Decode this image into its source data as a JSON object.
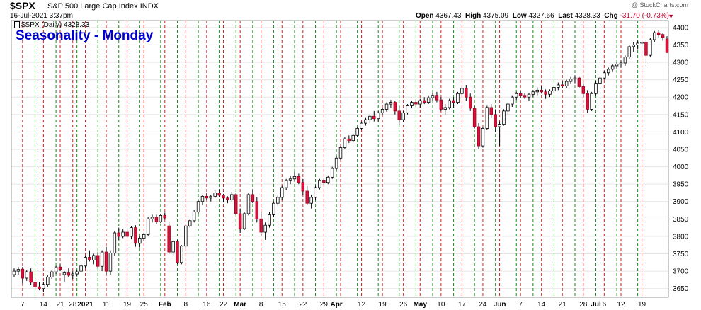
{
  "header": {
    "symbol": "$SPX",
    "name": "S&P 500 Large Cap Index",
    "exchange": "INDX",
    "datetime": "16-Jul-2021 3:37pm",
    "credit": "@ StockCharts.com",
    "open_label": "Open",
    "open": "4367.43",
    "high_label": "High",
    "high": "4375.09",
    "low_label": "Low",
    "low": "4327.66",
    "last_label": "Last",
    "last": "4328.33",
    "chg_label": "Chg",
    "chg": "-31.70 (-0.73%)",
    "legend": "$SPX (Daily) 4328.33"
  },
  "chart_data": {
    "type": "candlestick",
    "title": "Seasonality - Monday",
    "ylim": [
      3625,
      4420
    ],
    "yticks": [
      3650,
      3700,
      3750,
      3800,
      3850,
      3900,
      3950,
      4000,
      4050,
      4100,
      4150,
      4200,
      4250,
      4300,
      4350,
      4400
    ],
    "xticks": [
      {
        "label": "7",
        "i": 2
      },
      {
        "label": "14",
        "i": 7
      },
      {
        "label": "21",
        "i": 11
      },
      {
        "label": "28",
        "i": 14
      },
      {
        "label": "2021",
        "i": 17,
        "major": true
      },
      {
        "label": "11",
        "i": 22
      },
      {
        "label": "19",
        "i": 27
      },
      {
        "label": "25",
        "i": 31
      },
      {
        "label": "Feb",
        "i": 36,
        "major": true
      },
      {
        "label": "8",
        "i": 41
      },
      {
        "label": "16",
        "i": 46
      },
      {
        "label": "22",
        "i": 50
      },
      {
        "label": "Mar",
        "i": 54,
        "major": true
      },
      {
        "label": "8",
        "i": 59
      },
      {
        "label": "15",
        "i": 64
      },
      {
        "label": "22",
        "i": 69
      },
      {
        "label": "29",
        "i": 74
      },
      {
        "label": "Apr",
        "i": 77,
        "major": true
      },
      {
        "label": "12",
        "i": 83
      },
      {
        "label": "19",
        "i": 88
      },
      {
        "label": "26",
        "i": 93
      },
      {
        "label": "May",
        "i": 97,
        "major": true
      },
      {
        "label": "10",
        "i": 102
      },
      {
        "label": "17",
        "i": 107
      },
      {
        "label": "24",
        "i": 112
      },
      {
        "label": "Jun",
        "i": 116,
        "major": true
      },
      {
        "label": "7",
        "i": 121
      },
      {
        "label": "14",
        "i": 126
      },
      {
        "label": "21",
        "i": 131
      },
      {
        "label": "28",
        "i": 136
      },
      {
        "label": "Jul",
        "i": 139,
        "major": true
      },
      {
        "label": "6",
        "i": 141
      },
      {
        "label": "12",
        "i": 145
      },
      {
        "label": "19",
        "i": 150
      }
    ],
    "red_lines": [
      2,
      7,
      11,
      14,
      17,
      22,
      27,
      31,
      36,
      41,
      46,
      50,
      54,
      59,
      64,
      69,
      74,
      78,
      83,
      88,
      93,
      97,
      102,
      107,
      112,
      116,
      121,
      126,
      131,
      136,
      141,
      145,
      150
    ],
    "green_lines": [
      5,
      10,
      15,
      20,
      25,
      30,
      35,
      39,
      44,
      49,
      53,
      57,
      62,
      67,
      72,
      77,
      82,
      87,
      92,
      96,
      100,
      105,
      110,
      115,
      120,
      124,
      129,
      134,
      139,
      144,
      149
    ],
    "candles": [
      [
        0,
        3690,
        3708,
        3682,
        3700
      ],
      [
        1,
        3700,
        3712,
        3690,
        3705
      ],
      [
        2,
        3706,
        3712,
        3665,
        3680
      ],
      [
        3,
        3680,
        3702,
        3672,
        3698
      ],
      [
        4,
        3698,
        3708,
        3660,
        3668
      ],
      [
        5,
        3668,
        3680,
        3648,
        3655
      ],
      [
        6,
        3655,
        3668,
        3645,
        3650
      ],
      [
        7,
        3650,
        3668,
        3640,
        3662
      ],
      [
        8,
        3662,
        3688,
        3655,
        3683
      ],
      [
        9,
        3683,
        3702,
        3678,
        3698
      ],
      [
        10,
        3698,
        3715,
        3692,
        3712
      ],
      [
        11,
        3712,
        3720,
        3700,
        3705
      ],
      [
        12,
        3690,
        3700,
        3670,
        3695
      ],
      [
        13,
        3695,
        3708,
        3682,
        3688
      ],
      [
        14,
        3688,
        3700,
        3678,
        3692
      ],
      [
        15,
        3692,
        3702,
        3685,
        3698
      ],
      [
        16,
        3700,
        3720,
        3695,
        3715
      ],
      [
        17,
        3715,
        3745,
        3710,
        3740
      ],
      [
        18,
        3740,
        3760,
        3728,
        3732
      ],
      [
        19,
        3732,
        3750,
        3720,
        3745
      ],
      [
        20,
        3745,
        3756,
        3710,
        3714
      ],
      [
        21,
        3714,
        3760,
        3700,
        3755
      ],
      [
        22,
        3755,
        3770,
        3690,
        3700
      ],
      [
        23,
        3700,
        3760,
        3690,
        3752
      ],
      [
        24,
        3752,
        3815,
        3745,
        3810
      ],
      [
        25,
        3810,
        3825,
        3790,
        3800
      ],
      [
        26,
        3800,
        3820,
        3795,
        3812
      ],
      [
        27,
        3812,
        3822,
        3795,
        3800
      ],
      [
        28,
        3800,
        3830,
        3792,
        3825
      ],
      [
        29,
        3825,
        3832,
        3770,
        3780
      ],
      [
        30,
        3780,
        3800,
        3768,
        3795
      ],
      [
        31,
        3795,
        3810,
        3788,
        3805
      ],
      [
        32,
        3805,
        3855,
        3800,
        3850
      ],
      [
        33,
        3850,
        3862,
        3840,
        3855
      ],
      [
        34,
        3855,
        3862,
        3835,
        3842
      ],
      [
        35,
        3842,
        3865,
        3838,
        3860
      ],
      [
        36,
        3860,
        3868,
        3848,
        3853
      ],
      [
        37,
        3830,
        3840,
        3750,
        3755
      ],
      [
        38,
        3755,
        3790,
        3745,
        3785
      ],
      [
        39,
        3785,
        3790,
        3720,
        3725
      ],
      [
        40,
        3725,
        3775,
        3720,
        3772
      ],
      [
        41,
        3772,
        3832,
        3768,
        3830
      ],
      [
        42,
        3830,
        3850,
        3825,
        3845
      ],
      [
        43,
        3845,
        3875,
        3840,
        3870
      ],
      [
        44,
        3870,
        3905,
        3865,
        3900
      ],
      [
        45,
        3900,
        3920,
        3890,
        3915
      ],
      [
        46,
        3915,
        3925,
        3905,
        3910
      ],
      [
        47,
        3910,
        3920,
        3900,
        3915
      ],
      [
        48,
        3915,
        3932,
        3910,
        3925
      ],
      [
        49,
        3925,
        3935,
        3912,
        3918
      ],
      [
        50,
        3918,
        3922,
        3898,
        3910
      ],
      [
        51,
        3910,
        3915,
        3895,
        3905
      ],
      [
        52,
        3905,
        3928,
        3900,
        3920
      ],
      [
        53,
        3920,
        3925,
        3860,
        3865
      ],
      [
        54,
        3865,
        3880,
        3810,
        3822
      ],
      [
        55,
        3822,
        3870,
        3818,
        3865
      ],
      [
        56,
        3865,
        3925,
        3860,
        3920
      ],
      [
        57,
        3920,
        3935,
        3895,
        3900
      ],
      [
        58,
        3900,
        3912,
        3840,
        3850
      ],
      [
        59,
        3850,
        3870,
        3800,
        3812
      ],
      [
        60,
        3812,
        3840,
        3790,
        3832
      ],
      [
        61,
        3832,
        3870,
        3825,
        3862
      ],
      [
        62,
        3862,
        3900,
        3855,
        3895
      ],
      [
        63,
        3895,
        3920,
        3888,
        3912
      ],
      [
        64,
        3912,
        3945,
        3905,
        3940
      ],
      [
        65,
        3940,
        3965,
        3932,
        3960
      ],
      [
        66,
        3960,
        3975,
        3950,
        3965
      ],
      [
        67,
        3965,
        3985,
        3958,
        3972
      ],
      [
        68,
        3972,
        3980,
        3950,
        3955
      ],
      [
        69,
        3955,
        3965,
        3920,
        3930
      ],
      [
        70,
        3930,
        3945,
        3890,
        3895
      ],
      [
        71,
        3895,
        3920,
        3880,
        3912
      ],
      [
        72,
        3912,
        3945,
        3905,
        3940
      ],
      [
        73,
        3940,
        3965,
        3935,
        3960
      ],
      [
        74,
        3960,
        3968,
        3945,
        3955
      ],
      [
        75,
        3955,
        3975,
        3950,
        3970
      ],
      [
        76,
        3970,
        4000,
        3965,
        3995
      ],
      [
        77,
        3995,
        4030,
        3990,
        4025
      ],
      [
        78,
        4025,
        4060,
        4020,
        4055
      ],
      [
        79,
        4055,
        4085,
        4050,
        4080
      ],
      [
        80,
        4080,
        4090,
        4068,
        4075
      ],
      [
        81,
        4075,
        4095,
        4070,
        4090
      ],
      [
        82,
        4090,
        4115,
        4085,
        4110
      ],
      [
        83,
        4110,
        4130,
        4105,
        4125
      ],
      [
        84,
        4125,
        4140,
        4118,
        4135
      ],
      [
        85,
        4135,
        4150,
        4125,
        4145
      ],
      [
        86,
        4145,
        4160,
        4130,
        4138
      ],
      [
        87,
        4138,
        4160,
        4130,
        4155
      ],
      [
        88,
        4155,
        4170,
        4148,
        4165
      ],
      [
        89,
        4165,
        4185,
        4158,
        4180
      ],
      [
        90,
        4180,
        4192,
        4170,
        4185
      ],
      [
        91,
        4185,
        4190,
        4150,
        4160
      ],
      [
        92,
        4160,
        4175,
        4120,
        4135
      ],
      [
        93,
        4135,
        4160,
        4128,
        4155
      ],
      [
        94,
        4155,
        4180,
        4150,
        4175
      ],
      [
        95,
        4175,
        4190,
        4168,
        4185
      ],
      [
        96,
        4185,
        4195,
        4172,
        4180
      ],
      [
        97,
        4180,
        4195,
        4170,
        4190
      ],
      [
        98,
        4190,
        4200,
        4180,
        4185
      ],
      [
        99,
        4185,
        4205,
        4180,
        4198
      ],
      [
        100,
        4198,
        4212,
        4190,
        4205
      ],
      [
        101,
        4205,
        4215,
        4185,
        4192
      ],
      [
        102,
        4192,
        4200,
        4160,
        4165
      ],
      [
        103,
        4165,
        4180,
        4150,
        4170
      ],
      [
        104,
        4170,
        4195,
        4165,
        4190
      ],
      [
        105,
        4190,
        4200,
        4170,
        4185
      ],
      [
        106,
        4185,
        4215,
        4180,
        4210
      ],
      [
        107,
        4210,
        4230,
        4205,
        4225
      ],
      [
        108,
        4225,
        4235,
        4190,
        4200
      ],
      [
        109,
        4200,
        4210,
        4160,
        4168
      ],
      [
        110,
        4168,
        4175,
        4110,
        4115
      ],
      [
        111,
        4115,
        4125,
        4050,
        4060
      ],
      [
        112,
        4060,
        4115,
        4055,
        4110
      ],
      [
        113,
        4110,
        4175,
        4105,
        4170
      ],
      [
        114,
        4170,
        4180,
        4140,
        4150
      ],
      [
        115,
        4150,
        4165,
        4100,
        4115
      ],
      [
        116,
        4115,
        4130,
        4060,
        4122
      ],
      [
        117,
        4122,
        4165,
        4118,
        4160
      ],
      [
        118,
        4160,
        4185,
        4150,
        4180
      ],
      [
        119,
        4180,
        4205,
        4172,
        4200
      ],
      [
        120,
        4200,
        4215,
        4192,
        4210
      ],
      [
        121,
        4210,
        4218,
        4198,
        4205
      ],
      [
        122,
        4205,
        4212,
        4195,
        4200
      ],
      [
        123,
        4200,
        4212,
        4190,
        4208
      ],
      [
        124,
        4208,
        4220,
        4200,
        4215
      ],
      [
        125,
        4215,
        4228,
        4205,
        4220
      ],
      [
        126,
        4220,
        4232,
        4210,
        4215
      ],
      [
        127,
        4215,
        4222,
        4195,
        4208
      ],
      [
        128,
        4208,
        4222,
        4200,
        4218
      ],
      [
        129,
        4218,
        4232,
        4212,
        4228
      ],
      [
        130,
        4228,
        4242,
        4220,
        4235
      ],
      [
        131,
        4235,
        4245,
        4225,
        4232
      ],
      [
        132,
        4232,
        4250,
        4225,
        4245
      ],
      [
        133,
        4245,
        4258,
        4238,
        4252
      ],
      [
        134,
        4252,
        4262,
        4240,
        4255
      ],
      [
        135,
        4255,
        4258,
        4225,
        4230
      ],
      [
        136,
        4230,
        4240,
        4200,
        4210
      ],
      [
        137,
        4210,
        4220,
        4155,
        4165
      ],
      [
        138,
        4165,
        4215,
        4160,
        4210
      ],
      [
        139,
        4210,
        4245,
        4205,
        4240
      ],
      [
        140,
        4240,
        4262,
        4235,
        4255
      ],
      [
        141,
        4255,
        4275,
        4250,
        4270
      ],
      [
        142,
        4270,
        4285,
        4262,
        4280
      ],
      [
        143,
        4280,
        4295,
        4272,
        4290
      ],
      [
        144,
        4290,
        4300,
        4282,
        4295
      ],
      [
        145,
        4295,
        4305,
        4285,
        4298
      ],
      [
        146,
        4298,
        4320,
        4290,
        4315
      ],
      [
        147,
        4315,
        4350,
        4308,
        4345
      ],
      [
        148,
        4345,
        4358,
        4330,
        4350
      ],
      [
        149,
        4350,
        4362,
        4338,
        4355
      ],
      [
        150,
        4355,
        4362,
        4345,
        4358
      ],
      [
        151,
        4358,
        4365,
        4285,
        4320
      ],
      [
        152,
        4320,
        4370,
        4315,
        4365
      ],
      [
        153,
        4365,
        4390,
        4358,
        4385
      ],
      [
        154,
        4385,
        4392,
        4372,
        4380
      ],
      [
        155,
        4380,
        4385,
        4362,
        4372
      ],
      [
        156,
        4367,
        4375,
        4327,
        4328
      ]
    ],
    "n": 157
  }
}
